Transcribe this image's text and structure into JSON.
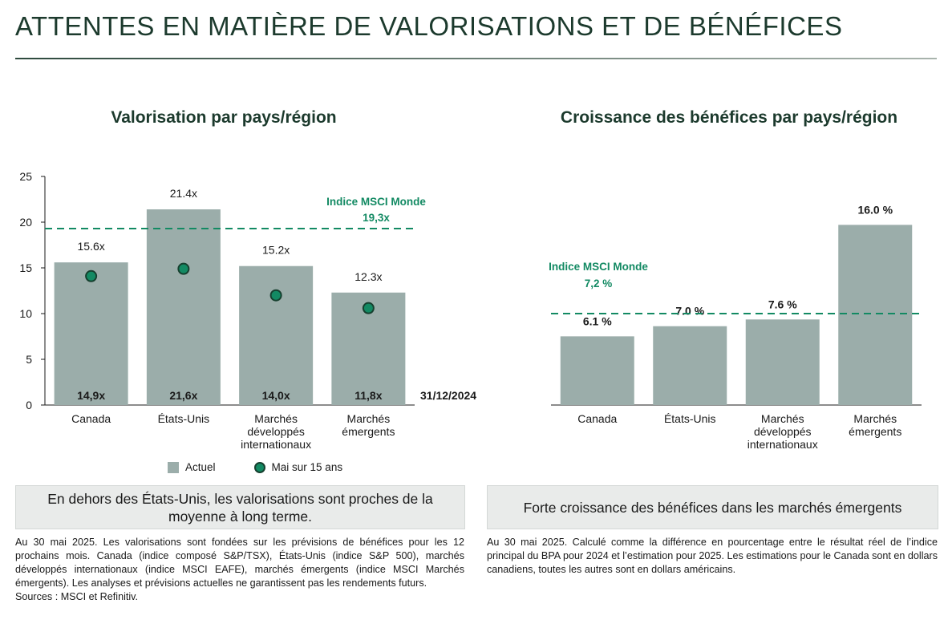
{
  "page_title": "ATTENTES EN MATIÈRE DE VALORISATIONS ET DE BÉNÉFICES",
  "colors": {
    "bar": "#9badaa",
    "accent": "#138a63",
    "dot_border": "#16402f",
    "title": "#1c3a2d"
  },
  "left": {
    "title": "Valorisation par pays/région",
    "date_label": "31/12/2024",
    "legend": {
      "bar": "Actuel",
      "dot": "Mai sur 15 ans"
    },
    "callout": "En dehors des États-Unis, les valorisations sont proches de la moyenne à long terme.",
    "note_lines": [
      "Au 30 mai 2025. Les valorisations sont fondées sur les prévisions de bénéfices pour les 12 prochains mois. Canada (indice composé S&P/TSX), États-Unis (indice S&P 500), marchés développés internationaux (indice MSCI EAFE), marchés émergents (indice MSCI Marchés émergents). Les analyses et prévisions actuelles ne garantissent pas les rendements futurs.",
      "Sources : MSCI et Refinitiv."
    ]
  },
  "right": {
    "title": "Croissance des bénéfices par pays/région",
    "callout": "Forte croissance des bénéfices dans les marchés émergents",
    "note": "Au 30 mai 2025. Calculé comme la différence en pourcentage entre le résultat réel de l’indice principal du BPA pour 2024 et l’estimation pour 2025. Les estimations pour le Canada sont en dollars canadiens, toutes les autres sont en dollars américains."
  },
  "chart_data": [
    {
      "type": "bar",
      "title": "Valorisation par pays/région",
      "categories": [
        [
          "Canada"
        ],
        [
          "États-Unis"
        ],
        [
          "Marchés",
          "développés",
          "internationaux"
        ],
        [
          "Marchés",
          "émergents"
        ]
      ],
      "series": [
        {
          "name": "Actuel",
          "values": [
            15.6,
            21.4,
            15.2,
            12.3
          ],
          "labels": [
            "15.6x",
            "21.4x",
            "15.2x",
            "12.3x"
          ]
        },
        {
          "name": "Mai sur 15 ans",
          "type": "scatter",
          "values": [
            14.1,
            14.9,
            12.0,
            10.6
          ]
        }
      ],
      "bottom_labels": [
        "14,9x",
        "21,6x",
        "14,0x",
        "11,8x"
      ],
      "reference_line": {
        "value": 19.3,
        "label": "Indice MSCI Monde",
        "value_label": "19,3x"
      },
      "yticks": [
        0,
        5,
        10,
        15,
        20,
        25
      ],
      "ylim": [
        0,
        25
      ]
    },
    {
      "type": "bar",
      "title": "Croissance des bénéfices par pays/région",
      "categories": [
        [
          "Canada"
        ],
        [
          "États-Unis"
        ],
        [
          "Marchés",
          "développés",
          "internationaux"
        ],
        [
          "Marchés",
          "émergents"
        ]
      ],
      "values": [
        6.1,
        7.0,
        7.6,
        16.0
      ],
      "labels": [
        "6.1 %",
        "7.0 %",
        "7.6 %",
        "16.0 %"
      ],
      "reference_line": {
        "value": 7.2,
        "label": "Indice MSCI Monde",
        "value_label": "7,2 %"
      }
    }
  ]
}
